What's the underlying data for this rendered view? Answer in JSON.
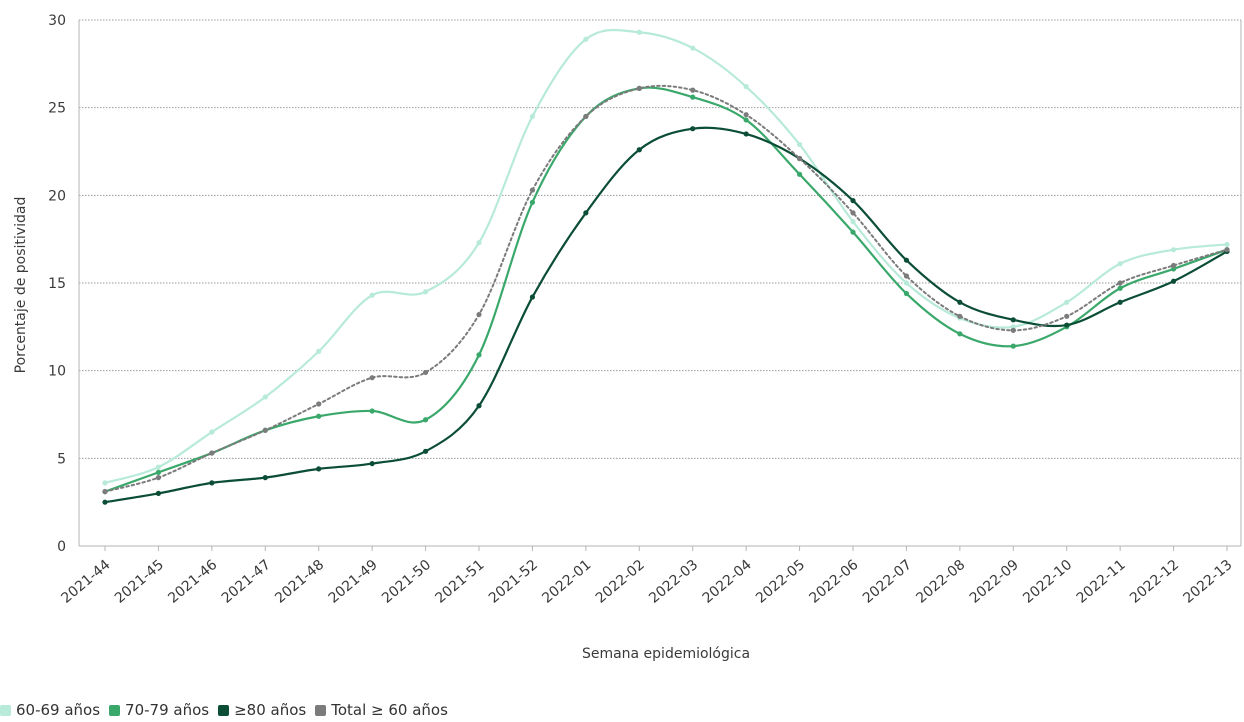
{
  "chart_data": {
    "type": "line",
    "title": "",
    "xlabel": "Semana epidemiológica",
    "ylabel": "Porcentaje de positividad",
    "ylim": [
      0,
      30
    ],
    "yticks": [
      "0",
      "5",
      "10",
      "15",
      "20",
      "25",
      "30"
    ],
    "grid": true,
    "legend_position": "bottom-left",
    "categories": [
      "2021-44",
      "2021-45",
      "2021-46",
      "2021-47",
      "2021-48",
      "2021-49",
      "2021-50",
      "2021-51",
      "2021-52",
      "2022-01",
      "2022-02",
      "2022-03",
      "2022-04",
      "2022-05",
      "2022-06",
      "2022-07",
      "2022-08",
      "2022-09",
      "2022-10",
      "2022-11",
      "2022-12",
      "2022-13"
    ],
    "series": [
      {
        "name": "60-69 años",
        "color": "#b7ead9",
        "dashed": false,
        "values": [
          3.6,
          4.5,
          6.5,
          8.5,
          11.1,
          14.3,
          14.5,
          17.3,
          24.5,
          28.9,
          29.3,
          28.4,
          26.2,
          22.9,
          18.5,
          15.0,
          13.0,
          12.5,
          13.9,
          16.1,
          16.9,
          17.2
        ]
      },
      {
        "name": "70-79 años",
        "color": "#3aa86b",
        "dashed": false,
        "values": [
          3.1,
          4.2,
          5.3,
          6.6,
          7.4,
          7.7,
          7.2,
          10.9,
          19.6,
          24.5,
          26.1,
          25.6,
          24.3,
          21.2,
          17.9,
          14.4,
          12.1,
          11.4,
          12.5,
          14.7,
          15.8,
          16.9
        ]
      },
      {
        "name": "≥80 años",
        "color": "#0b4d35",
        "dashed": false,
        "values": [
          2.5,
          3.0,
          3.6,
          3.9,
          4.4,
          4.7,
          5.4,
          8.0,
          14.2,
          19.0,
          22.6,
          23.8,
          23.5,
          22.1,
          19.7,
          16.3,
          13.9,
          12.9,
          12.6,
          13.9,
          15.1,
          16.8
        ]
      },
      {
        "name": "Total ≥ 60 años",
        "color": "#7b7b7b",
        "dashed": true,
        "values": [
          3.1,
          3.9,
          5.3,
          6.6,
          8.1,
          9.6,
          9.9,
          13.2,
          20.3,
          24.5,
          26.1,
          26.0,
          24.6,
          22.1,
          19.0,
          15.4,
          13.1,
          12.3,
          13.1,
          15.0,
          16.0,
          16.9
        ]
      }
    ]
  }
}
